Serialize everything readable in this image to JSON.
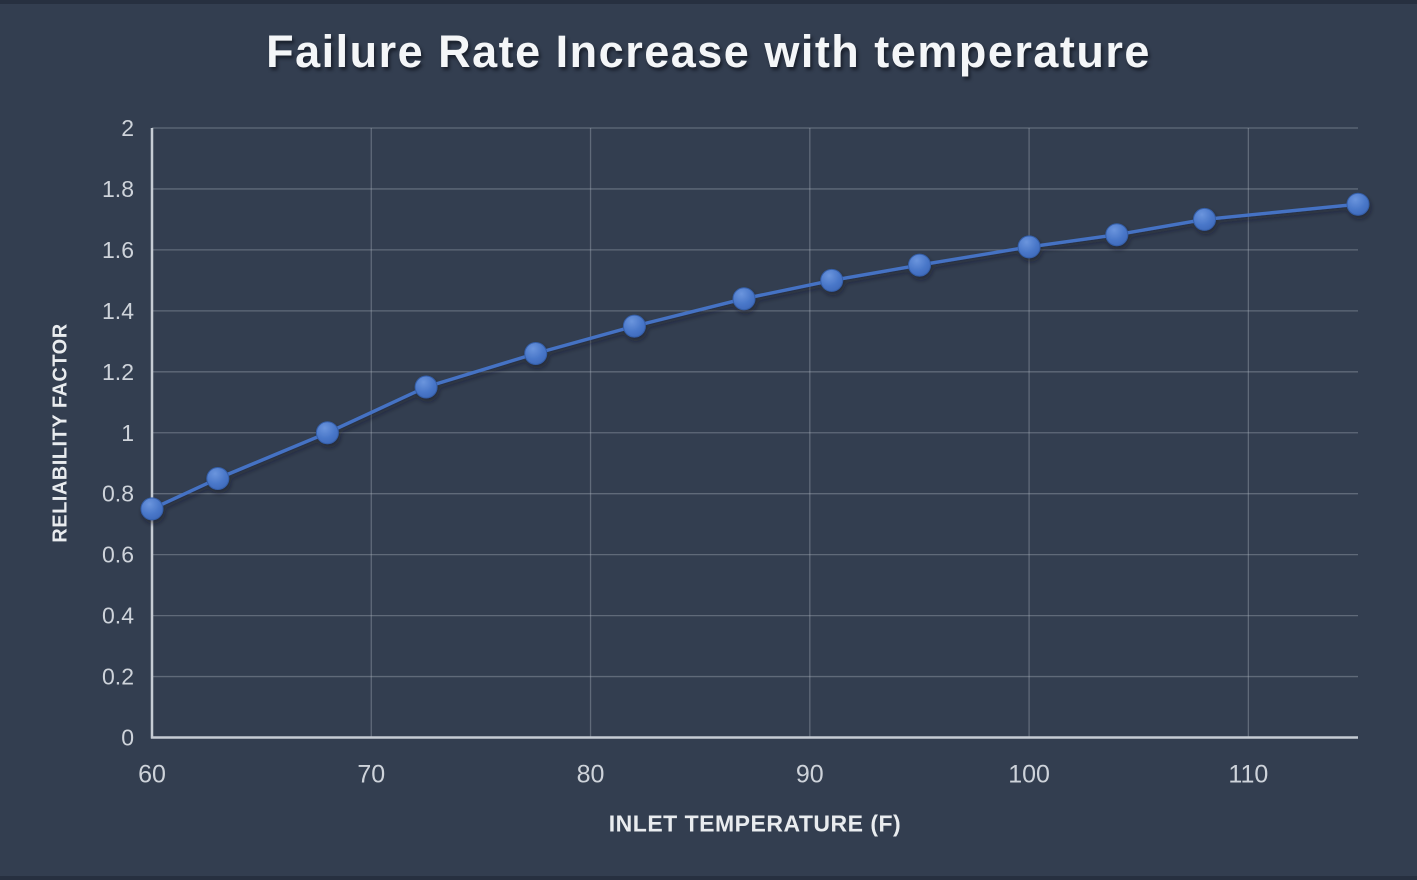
{
  "window": {
    "background_color": "#333e50",
    "edge_strip_color": "#273040"
  },
  "chart_data": {
    "type": "line",
    "title": "Failure Rate Increase with temperature",
    "xlabel": "INLET TEMPERATURE (F)",
    "ylabel": "RELIABILITY FACTOR",
    "x": [
      60,
      63,
      68,
      72.5,
      77.5,
      82,
      87,
      91,
      95,
      100,
      104,
      108,
      115
    ],
    "y": [
      0.75,
      0.85,
      1.0,
      1.15,
      1.26,
      1.35,
      1.44,
      1.5,
      1.55,
      1.61,
      1.65,
      1.7,
      1.75
    ],
    "xlim": [
      60,
      115
    ],
    "ylim": [
      0,
      2
    ],
    "xticks": [
      "60",
      "70",
      "80",
      "90",
      "100",
      "110"
    ],
    "yticks": [
      "0",
      "0.2",
      "0.4",
      "0.6",
      "0.8",
      "1",
      "1.2",
      "1.4",
      "1.6",
      "1.8",
      "2"
    ],
    "grid": true,
    "legend_position": "none",
    "marker_style": "circle",
    "colors": {
      "line": "#4472c4",
      "marker": "#4472c4",
      "marker_highlight": "#6b95dd",
      "marker_edge": "#355ea8",
      "grid": "#aab2be",
      "axis": "#c6ccd4",
      "tick_text": "#ced3da",
      "title_text": "#f4f6f8",
      "axis_title_text": "#e9ecef"
    }
  }
}
